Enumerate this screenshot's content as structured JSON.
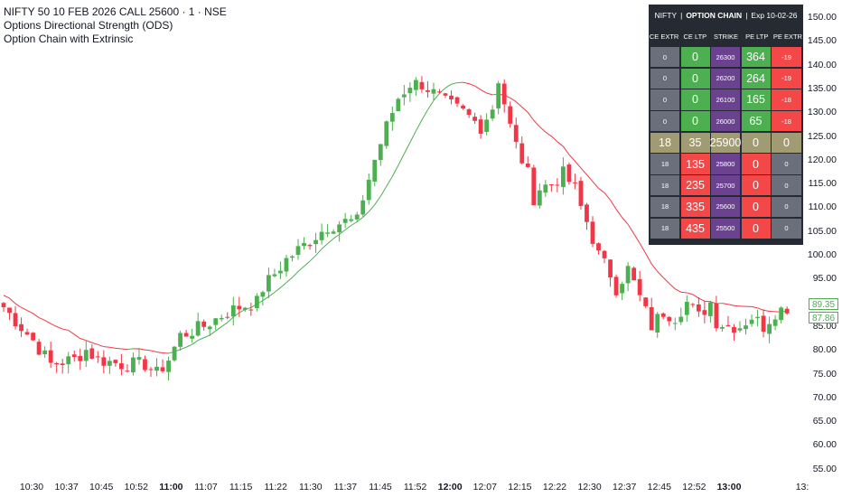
{
  "legend": {
    "line1": "NIFTY 50 10 FEB 2026 CALL 25600 · 1 · NSE",
    "line2": "Options Directional Strength (ODS)",
    "line3": "Option Chain with Extrinsic"
  },
  "option_chain": {
    "header": {
      "symbol": "NIFTY",
      "title": "OPTION CHAIN",
      "expiry": "Exp 10-02-26"
    },
    "columns": [
      "CE EXTR",
      "CE LTP",
      "STRIKE",
      "PE LTP",
      "PE EXTR"
    ],
    "rows": [
      {
        "ce_extr": "0",
        "ce_ltp": "0",
        "strike": "26300",
        "pe_ltp": "364",
        "pe_extr": "-19"
      },
      {
        "ce_extr": "0",
        "ce_ltp": "0",
        "strike": "26200",
        "pe_ltp": "264",
        "pe_extr": "-19"
      },
      {
        "ce_extr": "0",
        "ce_ltp": "0",
        "strike": "26100",
        "pe_ltp": "165",
        "pe_extr": "-18"
      },
      {
        "ce_extr": "0",
        "ce_ltp": "0",
        "strike": "26000",
        "pe_ltp": "65",
        "pe_extr": "-18"
      },
      {
        "ce_extr": "18",
        "ce_ltp": "35",
        "strike": "25900",
        "pe_ltp": "0",
        "pe_extr": "0",
        "atm": true
      },
      {
        "ce_extr": "18",
        "ce_ltp": "135",
        "strike": "25800",
        "pe_ltp": "0",
        "pe_extr": "0"
      },
      {
        "ce_extr": "18",
        "ce_ltp": "235",
        "strike": "25700",
        "pe_ltp": "0",
        "pe_extr": "0"
      },
      {
        "ce_extr": "18",
        "ce_ltp": "335",
        "strike": "25600",
        "pe_ltp": "0",
        "pe_extr": "0"
      },
      {
        "ce_extr": "18",
        "ce_ltp": "435",
        "strike": "25500",
        "pe_ltp": "0",
        "pe_extr": "0"
      }
    ]
  },
  "price_tags": {
    "last": "89.35",
    "line": "87.86"
  },
  "colors": {
    "up": "#4caf50",
    "down": "#f23645",
    "ma_up": "#4caf50",
    "ma_down": "#f23645"
  },
  "chart_data": {
    "type": "candlestick",
    "x_tick_labels": [
      "10:30",
      "10:37",
      "10:45",
      "10:52",
      "11:00",
      "11:07",
      "11:15",
      "11:22",
      "11:30",
      "11:37",
      "11:45",
      "11:52",
      "12:00",
      "12:07",
      "12:15",
      "12:22",
      "12:30",
      "12:37",
      "12:45",
      "12:52",
      "13:00",
      "13:"
    ],
    "bold_ticks": [
      "11:00",
      "12:00",
      "13:00"
    ],
    "y_ticks": [
      55,
      60,
      65,
      70,
      75,
      80,
      85,
      90,
      95,
      100,
      105,
      110,
      115,
      120,
      125,
      130,
      135,
      140,
      145,
      150
    ],
    "ylim": [
      53,
      152
    ],
    "waypoints": [
      [
        0,
        89
      ],
      [
        5,
        82
      ],
      [
        8,
        77
      ],
      [
        12,
        78
      ],
      [
        14,
        80
      ],
      [
        16,
        78
      ],
      [
        20,
        77
      ],
      [
        24,
        77
      ],
      [
        26,
        75
      ],
      [
        28,
        78
      ],
      [
        30,
        83
      ],
      [
        34,
        85
      ],
      [
        38,
        88
      ],
      [
        40,
        89
      ],
      [
        43,
        90
      ],
      [
        44,
        93
      ],
      [
        46,
        96
      ],
      [
        48,
        99
      ],
      [
        51,
        102
      ],
      [
        53,
        104
      ],
      [
        55,
        106
      ],
      [
        58,
        107
      ],
      [
        60,
        107
      ],
      [
        61,
        112
      ],
      [
        63,
        120
      ],
      [
        65,
        127
      ],
      [
        67,
        133
      ],
      [
        69,
        136
      ],
      [
        71,
        136
      ],
      [
        73,
        134
      ],
      [
        75,
        132
      ],
      [
        78,
        130
      ],
      [
        81,
        127
      ],
      [
        83,
        131
      ],
      [
        84,
        137
      ],
      [
        85,
        132
      ],
      [
        86,
        127
      ],
      [
        87,
        123
      ],
      [
        89,
        117
      ],
      [
        90,
        112
      ],
      [
        91,
        114
      ],
      [
        93,
        115
      ],
      [
        95,
        117
      ],
      [
        97,
        114
      ],
      [
        98,
        110
      ],
      [
        99,
        107
      ],
      [
        101,
        100
      ],
      [
        103,
        96
      ],
      [
        104,
        93
      ],
      [
        106,
        97
      ],
      [
        107,
        94
      ],
      [
        109,
        88
      ],
      [
        110,
        85
      ],
      [
        112,
        88
      ],
      [
        114,
        87
      ],
      [
        116,
        90
      ],
      [
        118,
        87
      ],
      [
        120,
        90
      ],
      [
        121,
        86
      ],
      [
        123,
        85
      ],
      [
        125,
        85
      ],
      [
        127,
        87
      ],
      [
        129,
        85
      ],
      [
        131,
        88
      ],
      [
        133,
        89
      ]
    ],
    "ma_period": 12,
    "annotations": [
      "89.35",
      "87.86"
    ]
  }
}
